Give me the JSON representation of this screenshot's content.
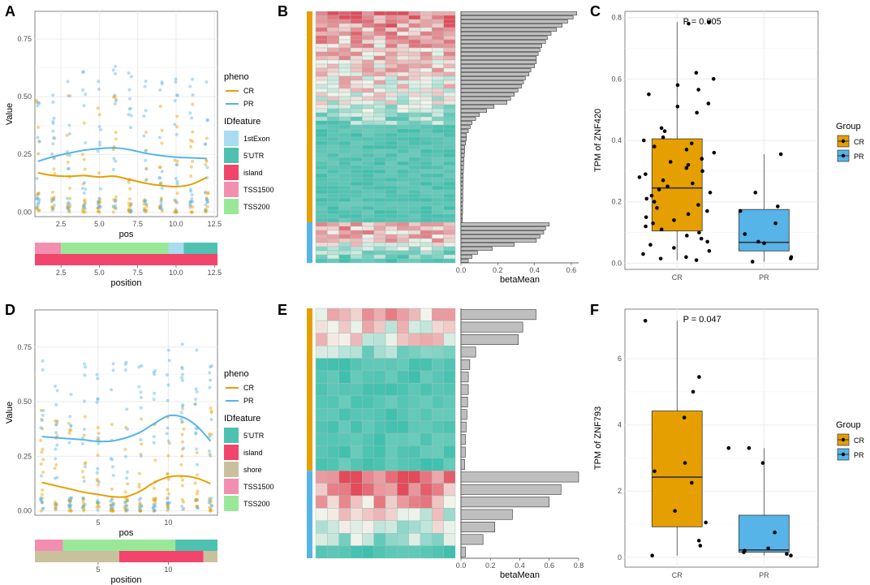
{
  "panels": {
    "A": "A",
    "B": "B",
    "C": "C",
    "D": "D",
    "E": "E",
    "F": "F"
  },
  "colors": {
    "CR": "#E69F00",
    "PR": "#56B4E9",
    "grid": "#ebebeb",
    "heat_low": "#3fbfad",
    "heat_mid": "#f4f4ec",
    "heat_high": "#e34a5a"
  },
  "chart_data": [
    {
      "id": "A",
      "type": "scatter",
      "xlabel": "pos",
      "ylabel": "Value",
      "xlim": [
        0.8,
        12.7
      ],
      "ylim": [
        -0.02,
        0.87
      ],
      "xticks": [
        2.5,
        5.0,
        7.5,
        10.0,
        12.5
      ],
      "xtick_labels": [
        "2.5",
        "5.0",
        "7.5",
        "10.0",
        "12.5"
      ],
      "yticks": [
        0.0,
        0.25,
        0.5,
        0.75
      ],
      "ytick_labels": [
        "0.00",
        "0.25",
        "0.50",
        "0.75"
      ],
      "series": [
        {
          "name": "CR",
          "color": "#E69F00",
          "smooth_x": [
            1,
            2,
            3,
            4,
            5,
            6,
            7,
            8,
            9,
            10,
            11,
            12
          ],
          "smooth_y": [
            0.17,
            0.158,
            0.155,
            0.158,
            0.152,
            0.155,
            0.14,
            0.125,
            0.115,
            0.11,
            0.12,
            0.15
          ]
        },
        {
          "name": "PR",
          "color": "#56B4E9",
          "smooth_x": [
            1,
            2,
            3,
            4,
            5,
            6,
            7,
            8,
            9,
            10,
            11,
            12
          ],
          "smooth_y": [
            0.22,
            0.24,
            0.255,
            0.268,
            0.275,
            0.278,
            0.27,
            0.255,
            0.245,
            0.238,
            0.235,
            0.232
          ]
        }
      ],
      "legend": {
        "pheno_title": "pheno",
        "pheno_items": [
          "CR",
          "PR"
        ],
        "feature_title": "IDfeature",
        "feature_items": [
          {
            "label": "1stExon",
            "color": "#a8dcf0"
          },
          {
            "label": "5'UTR",
            "color": "#4ec1b0"
          },
          {
            "label": "island",
            "color": "#f2456b"
          },
          {
            "label": "TSS1500",
            "color": "#f28fb0"
          },
          {
            "label": "TSS200",
            "color": "#98e898"
          }
        ]
      },
      "annotation_track": {
        "xlabel": "position",
        "rows": [
          [
            {
              "from": 0.8,
              "to": 2.5,
              "label": "TSS1500"
            },
            {
              "from": 2.5,
              "to": 9.5,
              "label": "TSS200"
            },
            {
              "from": 9.5,
              "to": 10.5,
              "label": "1stExon"
            },
            {
              "from": 10.5,
              "to": 12.7,
              "label": "5'UTR"
            }
          ],
          [
            {
              "from": 0.8,
              "to": 12.7,
              "label": "island"
            }
          ]
        ],
        "xtick_labels": [
          "2.5",
          "5.0",
          "7.5",
          "10.0",
          "12.5"
        ]
      }
    },
    {
      "id": "B",
      "type": "heatmap",
      "xlabel": "betaMean",
      "groups": [
        {
          "name": "CR",
          "rows": 52
        },
        {
          "name": "PR",
          "rows": 10
        }
      ],
      "bar_xticks": [
        0.0,
        0.2,
        0.4,
        0.6
      ],
      "bar_xtick_labels": [
        "0.0",
        "0.2",
        "0.4",
        "0.6"
      ],
      "bar_xmax": 0.64,
      "bar_values": [
        0.63,
        0.61,
        0.58,
        0.55,
        0.52,
        0.49,
        0.47,
        0.46,
        0.44,
        0.43,
        0.42,
        0.41,
        0.41,
        0.4,
        0.38,
        0.37,
        0.35,
        0.34,
        0.33,
        0.31,
        0.29,
        0.27,
        0.25,
        0.18,
        0.14,
        0.1,
        0.08,
        0.06,
        0.05,
        0.04,
        0.03,
        0.03,
        0.025,
        0.02,
        0.02,
        0.018,
        0.016,
        0.015,
        0.014,
        0.013,
        0.012,
        0.012,
        0.011,
        0.011,
        0.01,
        0.01,
        0.01,
        0.009,
        0.009,
        0.009,
        0.008,
        0.008,
        0.48,
        0.46,
        0.45,
        0.43,
        0.41,
        0.29,
        0.17,
        0.09,
        0.06,
        0.04
      ]
    },
    {
      "id": "C",
      "type": "box",
      "title": "P = 0.005",
      "xlabel": "",
      "ylabel": "TPM of ZNF420",
      "categories": [
        "CR",
        "PR"
      ],
      "ylim": [
        -0.02,
        0.82
      ],
      "yticks": [
        0.0,
        0.2,
        0.4,
        0.6,
        0.8
      ],
      "ytick_labels": [
        "0.0",
        "0.2",
        "0.4",
        "0.6",
        "0.8"
      ],
      "boxes": [
        {
          "name": "CR",
          "min": 0.01,
          "q1": 0.105,
          "median": 0.245,
          "q3": 0.405,
          "max": 0.785
        },
        {
          "name": "PR",
          "min": 0.005,
          "q1": 0.04,
          "median": 0.068,
          "q3": 0.175,
          "max": 0.355
        }
      ],
      "points": {
        "CR": [
          0.785,
          0.78,
          0.62,
          0.6,
          0.58,
          0.565,
          0.55,
          0.52,
          0.51,
          0.49,
          0.44,
          0.43,
          0.41,
          0.4,
          0.39,
          0.38,
          0.37,
          0.36,
          0.34,
          0.33,
          0.32,
          0.31,
          0.3,
          0.29,
          0.28,
          0.27,
          0.26,
          0.25,
          0.24,
          0.23,
          0.22,
          0.21,
          0.2,
          0.19,
          0.18,
          0.17,
          0.16,
          0.15,
          0.14,
          0.13,
          0.12,
          0.11,
          0.1,
          0.09,
          0.08,
          0.07,
          0.06,
          0.05,
          0.04,
          0.03,
          0.02,
          0.015,
          0.01
        ],
        "PR": [
          0.355,
          0.23,
          0.185,
          0.17,
          0.13,
          0.095,
          0.07,
          0.065,
          0.02,
          0.015,
          0.005
        ]
      },
      "legend": {
        "title": "Group",
        "items": [
          "CR",
          "PR"
        ]
      }
    },
    {
      "id": "D",
      "type": "scatter",
      "xlabel": "pos",
      "ylabel": "Value",
      "xlim": [
        0.5,
        13.5
      ],
      "ylim": [
        -0.02,
        0.92
      ],
      "xticks": [
        5,
        10
      ],
      "xtick_labels": [
        "5",
        "10"
      ],
      "yticks": [
        0.0,
        0.25,
        0.5,
        0.75
      ],
      "ytick_labels": [
        "0.00",
        "0.25",
        "0.50",
        "0.75"
      ],
      "series": [
        {
          "name": "CR",
          "color": "#E69F00",
          "smooth_x": [
            1,
            2,
            3,
            4,
            5,
            6,
            7,
            8,
            9,
            10,
            11,
            12,
            13
          ],
          "smooth_y": [
            0.13,
            0.115,
            0.1,
            0.085,
            0.075,
            0.065,
            0.065,
            0.09,
            0.13,
            0.155,
            0.16,
            0.15,
            0.125
          ]
        },
        {
          "name": "PR",
          "color": "#56B4E9",
          "smooth_x": [
            1,
            2,
            3,
            4,
            5,
            6,
            7,
            8,
            9,
            10,
            11,
            12,
            13
          ],
          "smooth_y": [
            0.34,
            0.335,
            0.33,
            0.325,
            0.318,
            0.32,
            0.335,
            0.36,
            0.4,
            0.435,
            0.43,
            0.39,
            0.32
          ]
        }
      ],
      "legend": {
        "pheno_title": "pheno",
        "pheno_items": [
          "CR",
          "PR"
        ],
        "feature_title": "IDfeature",
        "feature_items": [
          {
            "label": "5'UTR",
            "color": "#4ec1b0"
          },
          {
            "label": "island",
            "color": "#f2456b"
          },
          {
            "label": "shore",
            "color": "#c9c09e"
          },
          {
            "label": "TSS1500",
            "color": "#f28fb0"
          },
          {
            "label": "TSS200",
            "color": "#98e898"
          }
        ]
      },
      "annotation_track": {
        "xlabel": "position",
        "rows": [
          [
            {
              "from": 0.5,
              "to": 2.5,
              "label": "TSS1500"
            },
            {
              "from": 2.5,
              "to": 10.5,
              "label": "TSS200"
            },
            {
              "from": 10.5,
              "to": 13.5,
              "label": "5'UTR"
            }
          ],
          [
            {
              "from": 0.5,
              "to": 6.5,
              "label": "shore"
            },
            {
              "from": 6.5,
              "to": 12.5,
              "label": "island"
            },
            {
              "from": 12.5,
              "to": 13.5,
              "label": "shore"
            }
          ]
        ],
        "xtick_labels": [
          "5",
          "10"
        ]
      }
    },
    {
      "id": "E",
      "type": "heatmap",
      "xlabel": "betaMean",
      "groups": [
        {
          "name": "CR",
          "rows": 13
        },
        {
          "name": "PR",
          "rows": 7
        }
      ],
      "bar_xticks": [
        0.0,
        0.2,
        0.4,
        0.6,
        0.8
      ],
      "bar_xtick_labels": [
        "0.0",
        "0.2",
        "0.4",
        "0.6",
        "0.8"
      ],
      "bar_xmax": 0.8,
      "bar_values": [
        0.51,
        0.42,
        0.39,
        0.1,
        0.06,
        0.05,
        0.05,
        0.045,
        0.04,
        0.035,
        0.03,
        0.03,
        0.025,
        0.8,
        0.68,
        0.6,
        0.35,
        0.23,
        0.15,
        0.03
      ]
    },
    {
      "id": "F",
      "type": "box",
      "title": "P = 0.047",
      "xlabel": "",
      "ylabel": "TPM of ZNF793",
      "categories": [
        "CR",
        "PR"
      ],
      "ylim": [
        -0.3,
        7.5
      ],
      "yticks": [
        0,
        2,
        4,
        6
      ],
      "ytick_labels": [
        "0",
        "2",
        "4",
        "6"
      ],
      "boxes": [
        {
          "name": "CR",
          "min": 0.05,
          "q1": 0.92,
          "median": 2.42,
          "q3": 4.42,
          "max": 7.15
        },
        {
          "name": "PR",
          "min": 0.05,
          "q1": 0.15,
          "median": 0.22,
          "q3": 1.27,
          "max": 3.3
        }
      ],
      "points": {
        "CR": [
          7.15,
          5.45,
          5.0,
          4.22,
          2.85,
          2.6,
          2.25,
          1.4,
          1.05,
          0.5,
          0.35,
          0.05
        ],
        "PR": [
          3.3,
          3.3,
          2.85,
          0.75,
          0.27,
          0.2,
          0.15,
          0.1,
          0.05
        ]
      },
      "legend": {
        "title": "Group",
        "items": [
          "CR",
          "PR"
        ]
      }
    }
  ]
}
